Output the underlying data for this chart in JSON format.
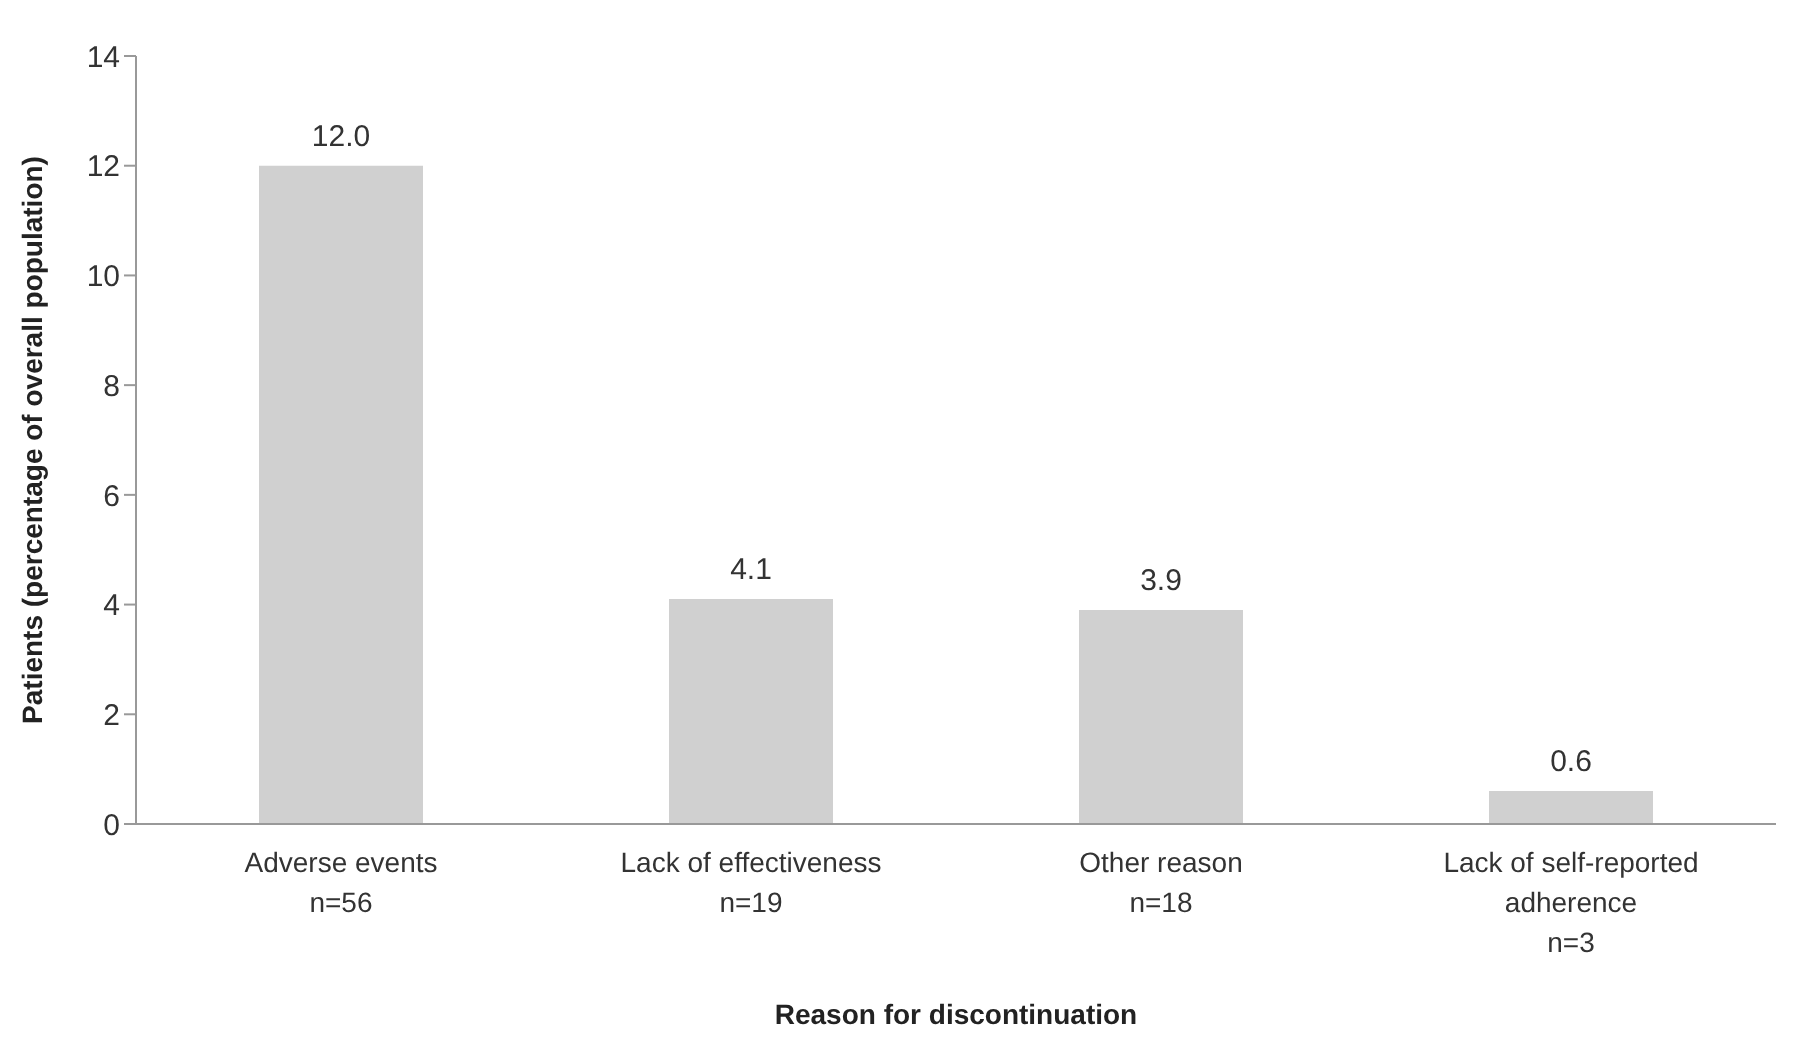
{
  "chart_data": {
    "type": "bar",
    "xlabel": "Reason for discontinuation",
    "ylabel": "Patients (percentage of overall population)",
    "categories": [
      "Adverse events\nn=56",
      "Lack of effectiveness\nn=19",
      "Other reason\nn=18",
      "Lack of self-reported\nadherence\nn=3"
    ],
    "values": [
      12.0,
      4.1,
      3.9,
      0.6
    ],
    "value_labels": [
      "12.0",
      "4.1",
      "3.9",
      "0.6"
    ],
    "color": "#d0d0d0",
    "ylim": [
      0,
      14
    ],
    "yticks": [
      0,
      2,
      4,
      6,
      8,
      10,
      12,
      14
    ],
    "grid": false
  }
}
